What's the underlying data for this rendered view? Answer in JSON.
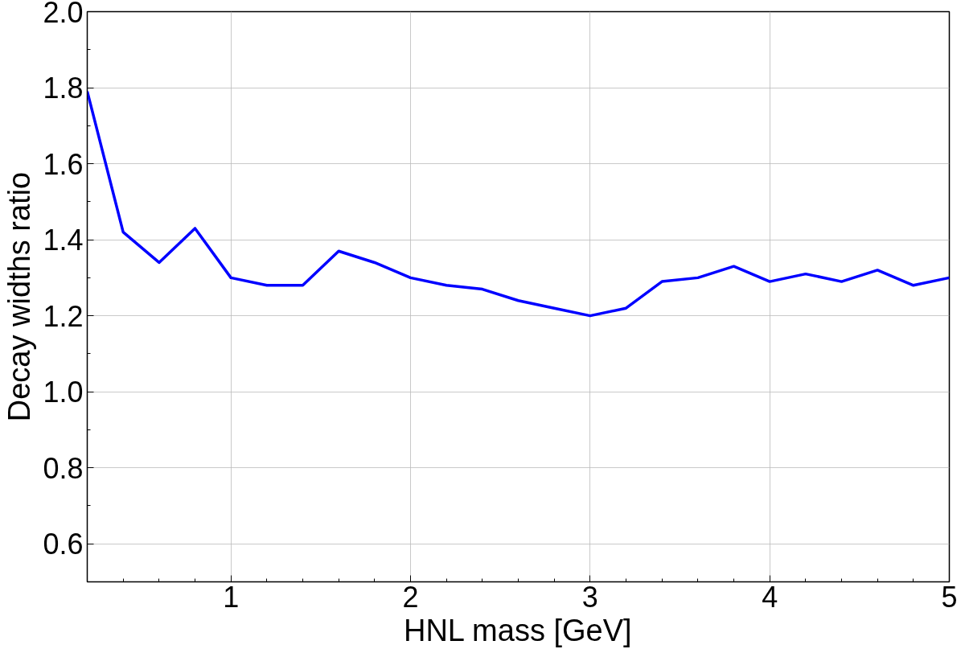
{
  "chart_data": {
    "type": "line",
    "xlabel": "HNL mass [GeV]",
    "ylabel": "Decay widths ratio",
    "x": [
      0.2,
      0.4,
      0.6,
      0.8,
      1.0,
      1.2,
      1.4,
      1.6,
      1.8,
      2.0,
      2.2,
      2.4,
      2.6,
      2.8,
      3.0,
      3.2,
      3.4,
      3.6,
      3.8,
      4.0,
      4.2,
      4.4,
      4.6,
      4.8,
      5.0
    ],
    "series": [
      {
        "color": "#0000ff",
        "values": [
          1.79,
          1.42,
          1.34,
          1.43,
          1.3,
          1.28,
          1.28,
          1.37,
          1.34,
          1.3,
          1.28,
          1.27,
          1.24,
          1.22,
          1.2,
          1.22,
          1.29,
          1.3,
          1.33,
          1.29,
          1.31,
          1.29,
          1.32,
          1.28,
          1.3
        ]
      }
    ],
    "xlim": [
      0.2,
      5
    ],
    "xticks": [
      1,
      2,
      3,
      4,
      5
    ],
    "ylim": [
      0.5,
      2.0
    ],
    "yticks": [
      {
        "value": 0.6,
        "label": "0.6"
      },
      {
        "value": 0.8,
        "label": "0.8"
      },
      {
        "value": 1,
        "label": "1.0"
      },
      {
        "value": 1.2,
        "label": "1.2"
      },
      {
        "value": 1.4,
        "label": "1.4"
      },
      {
        "value": 1.6,
        "label": "1.6"
      },
      {
        "value": 1.8,
        "label": "1.8"
      },
      {
        "value": 2,
        "label": "2.0"
      }
    ],
    "grid": true,
    "line_style": "solid"
  }
}
